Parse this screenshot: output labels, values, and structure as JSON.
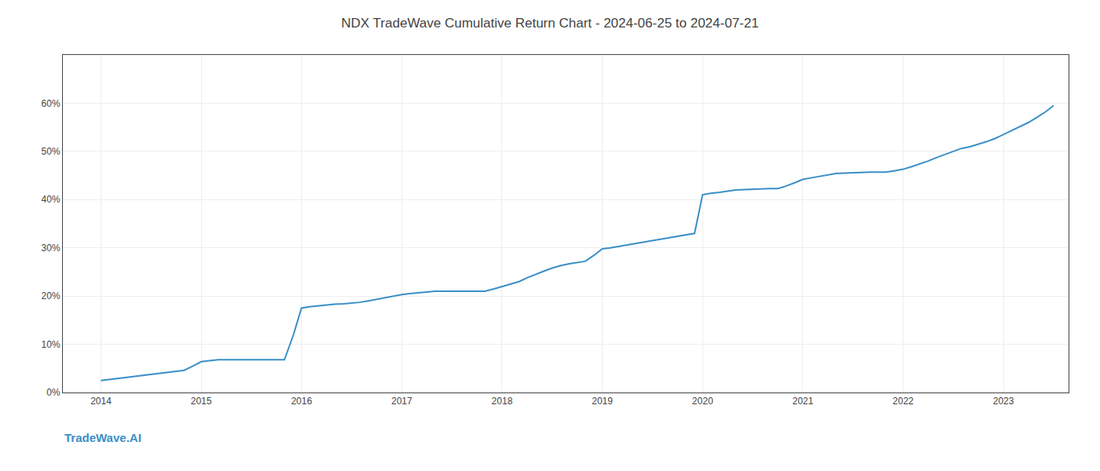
{
  "chart_data": {
    "type": "line",
    "title": "NDX TradeWave Cumulative Return Chart - 2024-06-25 to 2024-07-21",
    "annotations": [
      {
        "text": "TradeWave.AI"
      }
    ],
    "color": "#3a8fc7",
    "grid": true,
    "x": [
      2014.0,
      2014.08,
      2014.17,
      2014.25,
      2014.33,
      2014.42,
      2014.5,
      2014.58,
      2014.67,
      2014.75,
      2014.83,
      2014.92,
      2015.0,
      2015.08,
      2015.17,
      2015.25,
      2015.33,
      2015.42,
      2015.5,
      2015.58,
      2015.67,
      2015.75,
      2015.83,
      2015.92,
      2016.0,
      2016.08,
      2016.17,
      2016.25,
      2016.33,
      2016.42,
      2016.5,
      2016.58,
      2016.67,
      2016.75,
      2016.83,
      2016.92,
      2017.0,
      2017.08,
      2017.17,
      2017.25,
      2017.33,
      2017.42,
      2017.5,
      2017.58,
      2017.67,
      2017.75,
      2017.83,
      2017.92,
      2018.0,
      2018.08,
      2018.17,
      2018.25,
      2018.33,
      2018.42,
      2018.5,
      2018.58,
      2018.67,
      2018.75,
      2018.83,
      2018.92,
      2019.0,
      2019.08,
      2019.17,
      2019.25,
      2019.33,
      2019.42,
      2019.5,
      2019.58,
      2019.67,
      2019.75,
      2019.83,
      2019.92,
      2020.0,
      2020.08,
      2020.17,
      2020.25,
      2020.33,
      2020.42,
      2020.5,
      2020.58,
      2020.67,
      2020.75,
      2020.83,
      2020.92,
      2021.0,
      2021.08,
      2021.17,
      2021.25,
      2021.33,
      2021.42,
      2021.5,
      2021.58,
      2021.67,
      2021.75,
      2021.83,
      2021.92,
      2022.0,
      2022.08,
      2022.17,
      2022.25,
      2022.33,
      2022.42,
      2022.5,
      2022.58,
      2022.67,
      2022.75,
      2022.83,
      2022.92,
      2023.0,
      2023.08,
      2023.17,
      2023.25,
      2023.33,
      2023.42,
      2023.5
    ],
    "values": [
      0.025,
      0.027,
      0.029,
      0.031,
      0.033,
      0.036,
      0.038,
      0.04,
      0.042,
      0.044,
      0.046,
      0.055,
      0.064,
      0.066,
      0.068,
      0.068,
      0.068,
      0.068,
      0.068,
      0.068,
      0.068,
      0.068,
      0.068,
      0.12,
      0.175,
      0.178,
      0.18,
      0.182,
      0.183,
      0.184,
      0.185,
      0.187,
      0.19,
      0.193,
      0.197,
      0.2,
      0.203,
      0.205,
      0.207,
      0.209,
      0.21,
      0.21,
      0.21,
      0.21,
      0.21,
      0.21,
      0.21,
      0.215,
      0.22,
      0.225,
      0.23,
      0.238,
      0.245,
      0.252,
      0.258,
      0.263,
      0.267,
      0.27,
      0.272,
      0.285,
      0.298,
      0.3,
      0.303,
      0.306,
      0.309,
      0.312,
      0.315,
      0.318,
      0.321,
      0.324,
      0.327,
      0.33,
      0.41,
      0.413,
      0.415,
      0.418,
      0.42,
      0.421,
      0.422,
      0.423,
      0.423,
      0.423,
      0.428,
      0.435,
      0.442,
      0.445,
      0.448,
      0.451,
      0.454,
      0.455,
      0.456,
      0.457,
      0.457,
      0.457,
      0.457,
      0.46,
      0.463,
      0.468,
      0.474,
      0.48,
      0.487,
      0.494,
      0.5,
      0.506,
      0.51,
      0.515,
      0.52,
      0.527,
      0.535,
      0.543,
      0.552,
      0.56,
      0.57,
      0.582,
      0.595
    ],
    "xlim": [
      2013.62,
      2023.65
    ],
    "xticks": [
      2014,
      2015,
      2016,
      2017,
      2018,
      2019,
      2020,
      2021,
      2022,
      2023
    ],
    "ylim": [
      0.0,
      0.7
    ],
    "yticks": [
      {
        "value": 0.0,
        "label": "0%"
      },
      {
        "value": 0.1,
        "label": "10%"
      },
      {
        "value": 0.2,
        "label": "20%"
      },
      {
        "value": 0.3,
        "label": "30%"
      },
      {
        "value": 0.4,
        "label": "40%"
      },
      {
        "value": 0.5,
        "label": "50%"
      },
      {
        "value": 0.6,
        "label": "60%"
      }
    ]
  }
}
